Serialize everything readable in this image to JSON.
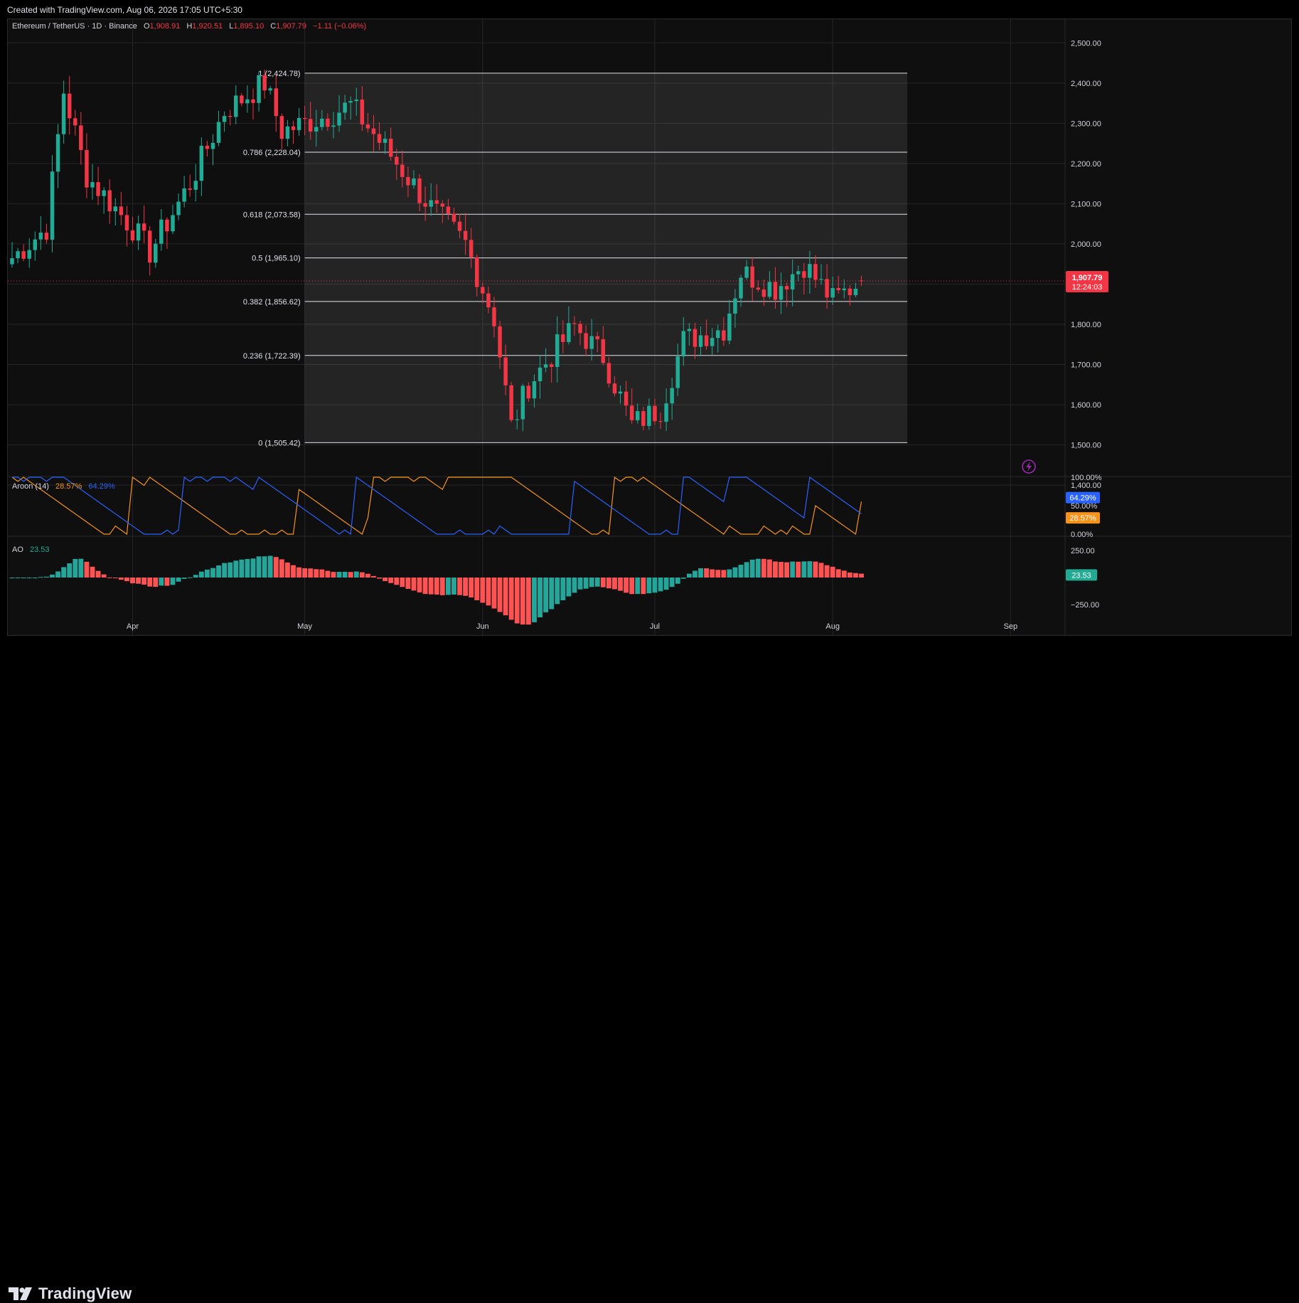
{
  "header": {
    "created_text": "Created with TradingView.com, Aug 06, 2026 17:05 UTC+5:30"
  },
  "legend": {
    "symbol": "Ethereum / TetherUS · 1D · Binance",
    "o_label": "O",
    "o_value": "1,908.91",
    "h_label": "H",
    "h_value": "1,920.51",
    "l_label": "L",
    "l_value": "1,895.10",
    "c_label": "C",
    "c_value": "1,907.79",
    "change": "−1.11 (−0.06%)"
  },
  "last_price": {
    "price": "1,907.79",
    "countdown": "12:24:03"
  },
  "aroon": {
    "label": "Aroon (14)",
    "down_value": "28.57%",
    "up_value": "64.29%",
    "axis_labels": [
      "100.00%",
      "50.00%",
      "0.00%"
    ],
    "badge_up": "64.29%",
    "badge_down": "28.57%"
  },
  "ao": {
    "label": "AO",
    "value": "23.53",
    "axis_labels": [
      "250.00",
      "−250.00"
    ],
    "badge": "23.53"
  },
  "x_axis_labels": [
    "Apr",
    "May",
    "Jun",
    "Jul",
    "Aug",
    "Sep"
  ],
  "price_axis_labels": [
    "2,500.00",
    "2,400.00",
    "2,300.00",
    "2,200.00",
    "2,100.00",
    "2,000.00",
    "1,800.00",
    "1,700.00",
    "1,600.00",
    "1,500.00",
    "1,400.00"
  ],
  "fibonacci": [
    {
      "label": "1 (2,424.78)",
      "price": 2424.78
    },
    {
      "label": "0.786 (2,228.04)",
      "price": 2228.04
    },
    {
      "label": "0.618 (2,073.58)",
      "price": 2073.58
    },
    {
      "label": "0.5 (1,965.10)",
      "price": 1965.1
    },
    {
      "label": "0.382 (1,856.62)",
      "price": 1856.62
    },
    {
      "label": "0.236 (1,722.39)",
      "price": 1722.39
    },
    {
      "label": "0 (1,505.42)",
      "price": 1505.42
    }
  ],
  "footer": {
    "brand": "TradingView"
  },
  "colors": {
    "up": "#22ab94",
    "down": "#f23645",
    "aroon_up": "#2962ff",
    "aroon_down": "#f7931a",
    "ao_up": "#26a69a",
    "ao_down": "#ff5252",
    "background": "#0f0f0f",
    "grid": "#262626"
  },
  "icons": {
    "alert": "lightning-icon"
  },
  "chart_data": {
    "type": "candlestick",
    "series": [
      {
        "name": "Ethereum / TetherUS · 1D · Binance"
      }
    ],
    "ohlc_anchors": [
      {
        "date": "2026-03-11",
        "close": 1965
      },
      {
        "date": "2026-03-17",
        "close": 2040
      },
      {
        "date": "2026-03-20",
        "close": 2380
      },
      {
        "date": "2026-03-24",
        "close": 2170
      },
      {
        "date": "2026-04-01",
        "close": 2040
      },
      {
        "date": "2026-04-04",
        "close": 1980
      },
      {
        "date": "2026-04-11",
        "close": 2150
      },
      {
        "date": "2026-04-17",
        "close": 2330
      },
      {
        "date": "2026-04-24",
        "close": 2400
      },
      {
        "date": "2026-04-27",
        "close": 2280
      },
      {
        "date": "2026-05-05",
        "close": 2320
      },
      {
        "date": "2026-05-09",
        "close": 2345
      },
      {
        "date": "2026-05-16",
        "close": 2220
      },
      {
        "date": "2026-05-23",
        "close": 2090
      },
      {
        "date": "2026-05-29",
        "close": 2000
      },
      {
        "date": "2026-06-03",
        "close": 1815
      },
      {
        "date": "2026-06-06",
        "close": 1545
      },
      {
        "date": "2026-06-09",
        "close": 1650
      },
      {
        "date": "2026-06-17",
        "close": 1795
      },
      {
        "date": "2026-06-22",
        "close": 1720
      },
      {
        "date": "2026-06-27",
        "close": 1550
      },
      {
        "date": "2026-07-02",
        "close": 1590
      },
      {
        "date": "2026-07-06",
        "close": 1760
      },
      {
        "date": "2026-07-13",
        "close": 1790
      },
      {
        "date": "2026-07-16",
        "close": 1930
      },
      {
        "date": "2026-07-22",
        "close": 1890
      },
      {
        "date": "2026-07-27",
        "close": 1950
      },
      {
        "date": "2026-08-01",
        "close": 1860
      },
      {
        "date": "2026-08-06",
        "close": 1907.79
      }
    ],
    "last_candle": {
      "date": "2026-08-06",
      "open": 1908.91,
      "high": 1920.51,
      "low": 1895.1,
      "close": 1907.79
    },
    "ylim": [
      1400,
      2520
    ],
    "xlim": [
      "2026-03-11",
      "2026-09-10"
    ],
    "x_ticks": [
      "2026-04-01",
      "2026-05-01",
      "2026-06-01",
      "2026-07-01",
      "2026-08-01",
      "2026-09-01"
    ],
    "fib_range_dates": [
      "2026-05-01",
      "2026-08-14"
    ],
    "grid": true
  }
}
